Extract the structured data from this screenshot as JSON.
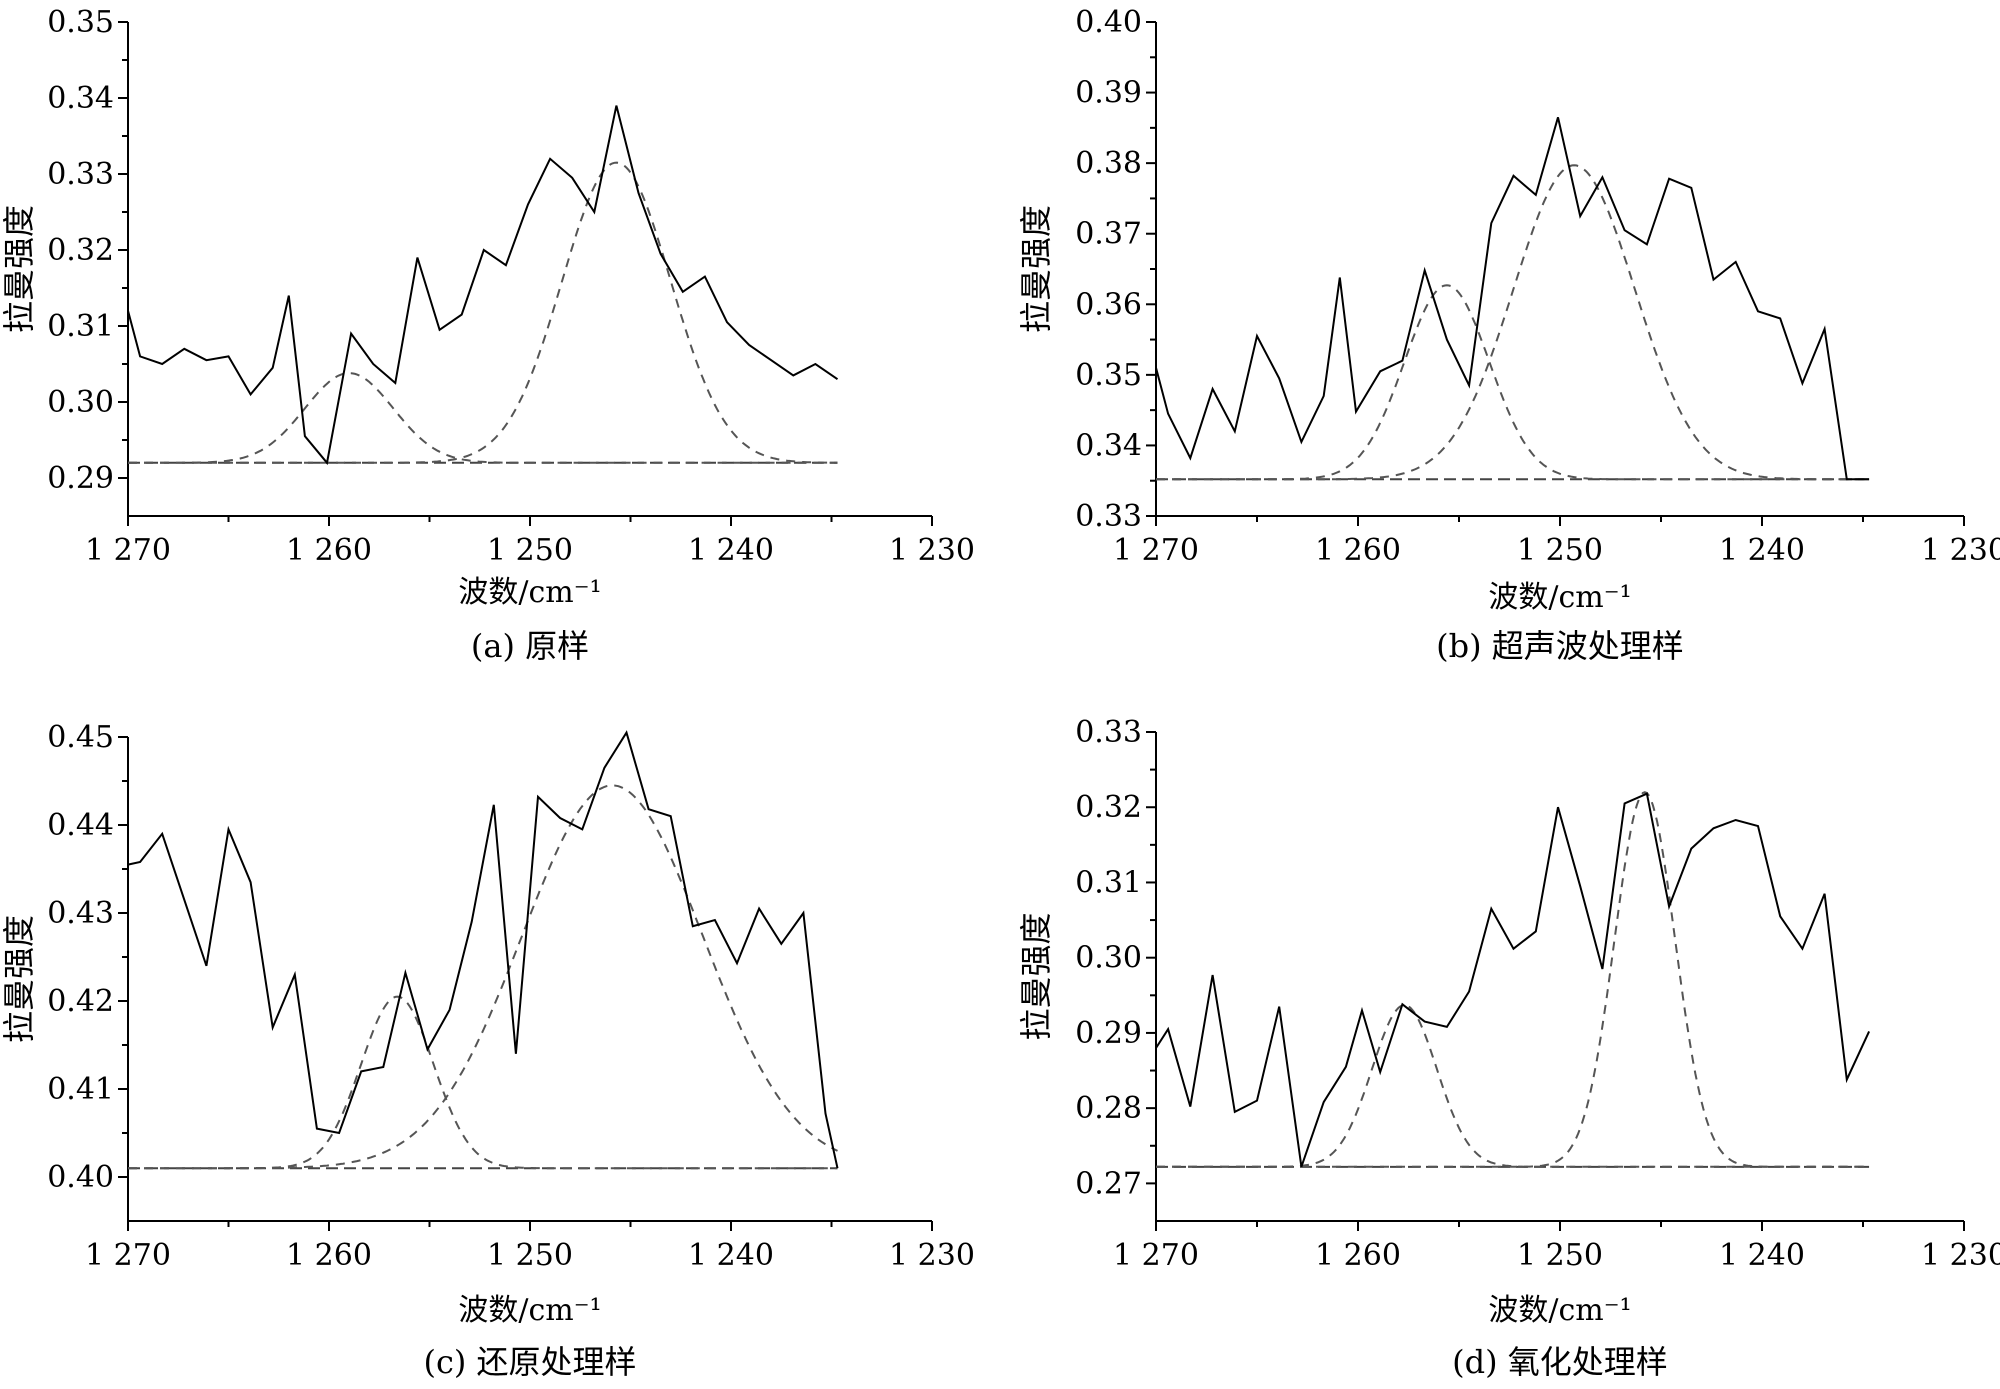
{
  "chart_data": [
    {
      "id": "a",
      "type": "line",
      "caption": "(a) 原样",
      "xlabel": "波数/cm⁻¹",
      "ylabel": "拉曼强度",
      "xlim": [
        1270,
        1230
      ],
      "ylim": [
        0.285,
        0.35
      ],
      "xticks": [
        1270,
        1260,
        1250,
        1240,
        1230
      ],
      "xtick_labels": [
        "1 270",
        "1 260",
        "1 250",
        "1 240",
        "1 230"
      ],
      "yticks": [
        0.29,
        0.3,
        0.31,
        0.32,
        0.33,
        0.34,
        0.35
      ],
      "ytick_labels": [
        "0.29",
        "0.30",
        "0.31",
        "0.32",
        "0.33",
        "0.34",
        "0.35"
      ],
      "baseline": 0.292,
      "raw": {
        "x": [
          1270,
          1269.4,
          1268.3,
          1267.2,
          1266.1,
          1265,
          1263.9,
          1262.8,
          1262,
          1261.2,
          1260.1,
          1258.9,
          1257.8,
          1256.7,
          1255.6,
          1254.5,
          1253.4,
          1252.3,
          1251.2,
          1250.1,
          1249,
          1247.9,
          1246.8,
          1245.7,
          1244.6,
          1243.5,
          1242.4,
          1241.3,
          1240.2,
          1239.1,
          1238,
          1236.9,
          1235.8,
          1234.7
        ],
        "y": [
          0.312,
          0.306,
          0.305,
          0.307,
          0.3055,
          0.306,
          0.301,
          0.3045,
          0.314,
          0.2955,
          0.292,
          0.309,
          0.305,
          0.3025,
          0.319,
          0.3095,
          0.3115,
          0.32,
          0.318,
          0.326,
          0.332,
          0.3295,
          0.325,
          0.339,
          0.3275,
          0.3195,
          0.3145,
          0.3165,
          0.3105,
          0.3075,
          0.3055,
          0.3035,
          0.305,
          0.303
        ]
      },
      "peaks": [
        {
          "center": 1259,
          "height": 0.0118,
          "sigma": 2.2
        },
        {
          "center": 1245.7,
          "height": 0.0395,
          "sigma": 2.7
        }
      ]
    },
    {
      "id": "b",
      "type": "line",
      "caption": "(b) 超声波处理样",
      "xlabel": "波数/cm⁻¹",
      "ylabel": "拉曼强度",
      "xlim": [
        1270,
        1230
      ],
      "ylim": [
        0.33,
        0.4
      ],
      "xticks": [
        1270,
        1260,
        1250,
        1240,
        1230
      ],
      "xtick_labels": [
        "1 270",
        "1 260",
        "1 250",
        "1 240",
        "1 230"
      ],
      "yticks": [
        0.33,
        0.34,
        0.35,
        0.36,
        0.37,
        0.38,
        0.39,
        0.4
      ],
      "ytick_labels": [
        "0.33",
        "0.34",
        "0.35",
        "0.36",
        "0.37",
        "0.38",
        "0.39",
        "0.40"
      ],
      "baseline": 0.3352,
      "raw": {
        "x": [
          1270,
          1269.4,
          1268.3,
          1267.2,
          1266.1,
          1265,
          1263.9,
          1262.8,
          1261.7,
          1260.9,
          1260.1,
          1258.9,
          1257.8,
          1256.7,
          1255.6,
          1254.5,
          1253.4,
          1252.3,
          1251.2,
          1250.1,
          1249,
          1247.9,
          1246.8,
          1245.7,
          1244.6,
          1243.5,
          1242.4,
          1241.3,
          1240.2,
          1239.1,
          1238,
          1236.9,
          1235.8,
          1234.7
        ],
        "y": [
          0.351,
          0.3445,
          0.3382,
          0.348,
          0.342,
          0.3555,
          0.3495,
          0.3405,
          0.347,
          0.3638,
          0.3448,
          0.3505,
          0.352,
          0.3648,
          0.355,
          0.3485,
          0.3715,
          0.3782,
          0.3755,
          0.3865,
          0.3725,
          0.378,
          0.3705,
          0.3685,
          0.3778,
          0.3765,
          0.3635,
          0.366,
          0.359,
          0.358,
          0.3488,
          0.3565,
          0.3352,
          0.3352
        ]
      },
      "peaks": [
        {
          "center": 1255.6,
          "height": 0.0275,
          "sigma": 2.1
        },
        {
          "center": 1249.3,
          "height": 0.0445,
          "sigma": 3.0
        }
      ]
    },
    {
      "id": "c",
      "type": "line",
      "caption": "(c) 还原处理样",
      "xlabel": "波数/cm⁻¹",
      "ylabel": "拉曼强度",
      "xlim": [
        1270,
        1230
      ],
      "ylim": [
        0.395,
        0.45
      ],
      "xticks": [
        1270,
        1260,
        1250,
        1240,
        1230
      ],
      "xtick_labels": [
        "1 270",
        "1 260",
        "1 250",
        "1 240",
        "1 230"
      ],
      "yticks": [
        0.4,
        0.41,
        0.42,
        0.43,
        0.44,
        0.45
      ],
      "ytick_labels": [
        "0.40",
        "0.41",
        "0.42",
        "0.43",
        "0.44",
        "0.45"
      ],
      "baseline": 0.401,
      "raw": {
        "x": [
          1270,
          1269.4,
          1268.3,
          1267.2,
          1266.1,
          1265,
          1263.9,
          1262.8,
          1261.7,
          1260.6,
          1259.5,
          1258.4,
          1257.3,
          1256.2,
          1255.1,
          1254,
          1252.9,
          1251.8,
          1250.7,
          1249.6,
          1248.5,
          1247.4,
          1246.3,
          1245.2,
          1244.1,
          1243,
          1241.9,
          1240.8,
          1239.7,
          1238.6,
          1237.5,
          1236.4,
          1235.3,
          1234.7
        ],
        "y": [
          0.4355,
          0.4358,
          0.439,
          0.4315,
          0.424,
          0.4395,
          0.4335,
          0.417,
          0.423,
          0.4055,
          0.405,
          0.412,
          0.4125,
          0.4232,
          0.4145,
          0.419,
          0.429,
          0.4423,
          0.414,
          0.4432,
          0.4408,
          0.4395,
          0.4465,
          0.4505,
          0.4418,
          0.441,
          0.4285,
          0.4292,
          0.4243,
          0.4305,
          0.4265,
          0.43,
          0.4072,
          0.401
        ]
      },
      "peaks": [
        {
          "center": 1256.6,
          "height": 0.0195,
          "sigma": 1.8
        },
        {
          "center": 1245.9,
          "height": 0.0435,
          "sigma": 4.5
        }
      ]
    },
    {
      "id": "d",
      "type": "line",
      "caption": "(d) 氧化处理样",
      "xlabel": "波数/cm⁻¹",
      "ylabel": "拉曼强度",
      "xlim": [
        1270,
        1230
      ],
      "ylim": [
        0.265,
        0.33
      ],
      "xticks": [
        1270,
        1260,
        1250,
        1240,
        1230
      ],
      "xtick_labels": [
        "1 270",
        "1 260",
        "1 250",
        "1 240",
        "1 230"
      ],
      "yticks": [
        0.27,
        0.28,
        0.29,
        0.3,
        0.31,
        0.32,
        0.33
      ],
      "ytick_labels": [
        "0.27",
        "0.28",
        "0.29",
        "0.30",
        "0.31",
        "0.32",
        "0.33"
      ],
      "baseline": 0.2722,
      "raw": {
        "x": [
          1270,
          1269.4,
          1268.3,
          1267.2,
          1266.1,
          1265,
          1263.9,
          1262.8,
          1261.7,
          1260.6,
          1259.8,
          1258.9,
          1257.8,
          1256.7,
          1255.6,
          1254.5,
          1253.4,
          1252.3,
          1251.2,
          1250.1,
          1249,
          1247.9,
          1246.8,
          1245.7,
          1244.6,
          1243.5,
          1242.4,
          1241.3,
          1240.2,
          1239.1,
          1238,
          1236.9,
          1235.8,
          1234.7
        ],
        "y": [
          0.288,
          0.2905,
          0.2802,
          0.2977,
          0.2795,
          0.281,
          0.2935,
          0.2722,
          0.2808,
          0.2855,
          0.293,
          0.2848,
          0.2938,
          0.2915,
          0.2908,
          0.2955,
          0.3065,
          0.3012,
          0.3035,
          0.32,
          0.3095,
          0.2985,
          0.3205,
          0.3218,
          0.3068,
          0.3145,
          0.3172,
          0.3183,
          0.3175,
          0.3055,
          0.3012,
          0.3085,
          0.2838,
          0.2902
        ]
      },
      "peaks": [
        {
          "center": 1257.7,
          "height": 0.0215,
          "sigma": 1.6
        },
        {
          "center": 1245.8,
          "height": 0.0498,
          "sigma": 1.5
        }
      ]
    }
  ]
}
